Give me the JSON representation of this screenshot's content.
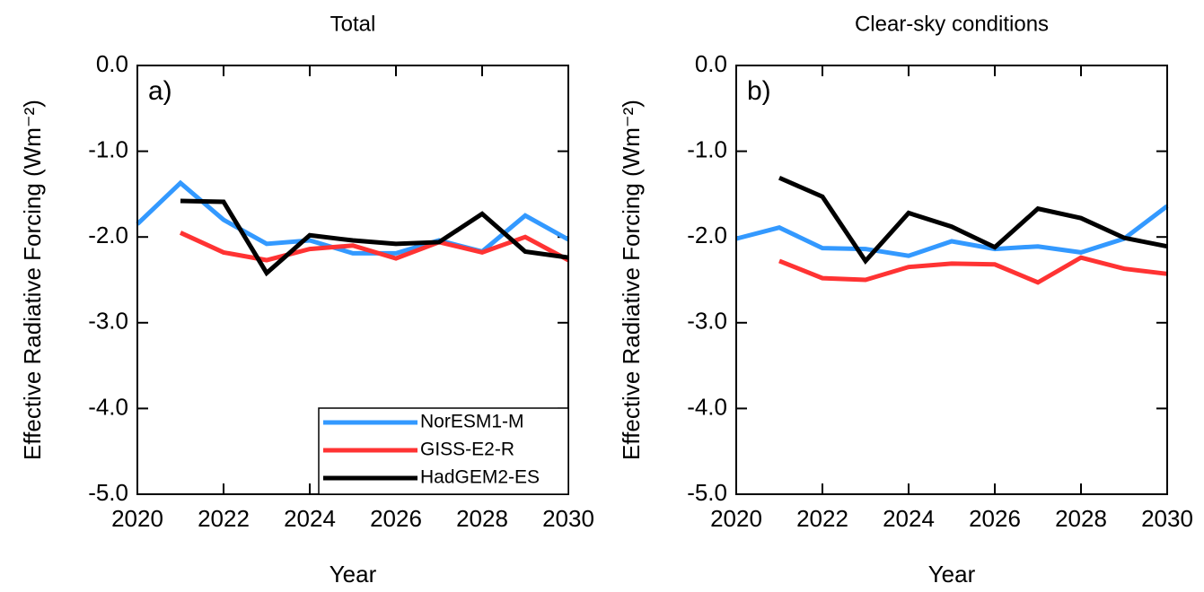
{
  "chart_data": [
    {
      "type": "line",
      "title": "Total",
      "annotation": "a)",
      "xlabel": "Year",
      "ylabel": "Effective Radiative Forcing (Wm⁻²)",
      "x": [
        2020,
        2021,
        2022,
        2023,
        2024,
        2025,
        2026,
        2027,
        2028,
        2029,
        2030
      ],
      "xlim": [
        2020,
        2030
      ],
      "xticks": [
        2020,
        2022,
        2024,
        2026,
        2028,
        2030
      ],
      "ylim": [
        -5,
        0
      ],
      "yticks": [
        {
          "value": -5,
          "label": "-5.0"
        },
        {
          "value": -4,
          "label": "-4.0"
        },
        {
          "value": -3,
          "label": "-3.0"
        },
        {
          "value": -2,
          "label": "-2.0"
        },
        {
          "value": -1,
          "label": "-1.0"
        },
        {
          "value": 0,
          "label": "0.0"
        }
      ],
      "legend": "lower right",
      "series": [
        {
          "name": "NorESM1-M",
          "color": "#3399ff",
          "values": [
            -1.85,
            -1.37,
            -1.8,
            -2.08,
            -2.04,
            -2.19,
            -2.19,
            -2.04,
            -2.17,
            -1.75,
            -2.03
          ]
        },
        {
          "name": "GISS-E2-R",
          "color": "#ff3333",
          "values": [
            null,
            -1.95,
            -2.18,
            -2.27,
            -2.14,
            -2.1,
            -2.25,
            -2.06,
            -2.18,
            -2.0,
            -2.27
          ]
        },
        {
          "name": "HadGEM2-ES",
          "color": "#000000",
          "values": [
            null,
            -1.58,
            -1.59,
            -2.42,
            -1.98,
            -2.04,
            -2.08,
            -2.06,
            -1.73,
            -2.17,
            -2.24
          ]
        }
      ]
    },
    {
      "type": "line",
      "title": "Clear-sky conditions",
      "annotation": "b)",
      "xlabel": "Year",
      "ylabel": "Effective Radiative Forcing (Wm⁻²)",
      "x": [
        2020,
        2021,
        2022,
        2023,
        2024,
        2025,
        2026,
        2027,
        2028,
        2029,
        2030
      ],
      "xlim": [
        2020,
        2030
      ],
      "xticks": [
        2020,
        2022,
        2024,
        2026,
        2028,
        2030
      ],
      "ylim": [
        -5,
        0
      ],
      "yticks": [
        {
          "value": -5,
          "label": "-5.0"
        },
        {
          "value": -4,
          "label": "-4.0"
        },
        {
          "value": -3,
          "label": "-3.0"
        },
        {
          "value": -2,
          "label": "-2.0"
        },
        {
          "value": -1,
          "label": "-1.0"
        },
        {
          "value": 0,
          "label": "0.0"
        }
      ],
      "series": [
        {
          "color": "#3399ff",
          "values": [
            -2.02,
            -1.89,
            -2.13,
            -2.14,
            -2.22,
            -2.05,
            -2.14,
            -2.11,
            -2.18,
            -2.02,
            -1.64
          ]
        },
        {
          "color": "#ff3333",
          "values": [
            null,
            -2.28,
            -2.48,
            -2.5,
            -2.35,
            -2.31,
            -2.32,
            -2.53,
            -2.24,
            -2.37,
            -2.43
          ]
        },
        {
          "color": "#000000",
          "values": [
            null,
            -1.31,
            -1.53,
            -2.28,
            -1.72,
            -1.88,
            -2.12,
            -1.67,
            -1.78,
            -2.01,
            -2.11
          ]
        }
      ]
    }
  ]
}
